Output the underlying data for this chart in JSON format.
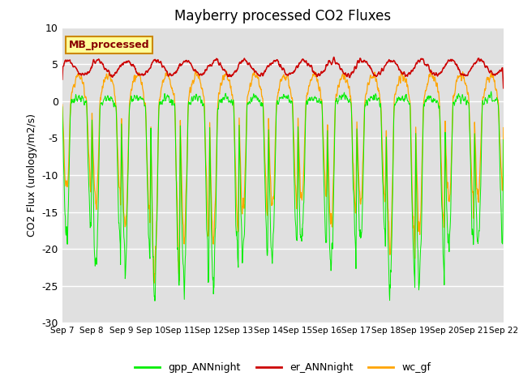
{
  "title": "Mayberry processed CO2 Fluxes",
  "ylabel": "CO2 Flux (urology/m2/s)",
  "ylim": [
    -30,
    10
  ],
  "yticks": [
    10,
    5,
    0,
    -5,
    -10,
    -15,
    -20,
    -25,
    -30
  ],
  "n_days": 15,
  "points_per_day": 96,
  "colors": {
    "gpp": "#00EE00",
    "er": "#CC0000",
    "wc": "#FFA500"
  },
  "legend_label": "MB_processed",
  "legend_bg": "#FFFF99",
  "legend_border": "#CC8800",
  "legend_text_color": "#880000",
  "plot_bg": "#E0E0E0",
  "line_labels": [
    "gpp_ANNnight",
    "er_ANNnight",
    "wc_gf"
  ],
  "ax_tick_labels": [
    "Sep 7",
    "Sep 8",
    "Sep 9",
    "Sep 10",
    "Sep 11",
    "Sep 12",
    "Sep 13",
    "Sep 14",
    "Sep 15",
    "Sep 16",
    "Sep 17",
    "Sep 18",
    "Sep 19",
    "Sep 20",
    "Sep 21",
    "Sep 22"
  ]
}
